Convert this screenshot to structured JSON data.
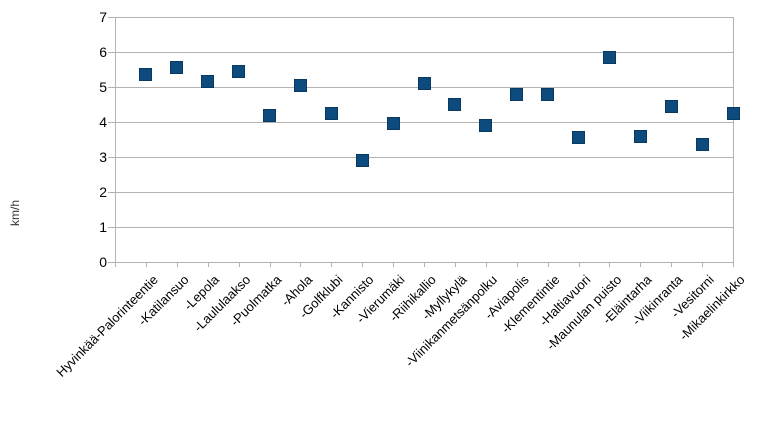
{
  "chart_data": {
    "type": "scatter",
    "marker_shape": "square",
    "title": "",
    "xlabel": "",
    "ylabel": "km/h",
    "ylim": [
      0,
      7
    ],
    "ytick_step": 1,
    "grid": true,
    "legend_position": "none",
    "categories": [
      "Hyvinkää-Palorinteentie",
      "-Katilansuo",
      "-Lepola",
      "-Laululaakso",
      "-Puolmatka",
      "-Ahola",
      "-Golfklubi",
      "-Kannisto",
      "-Vierumäki",
      "-Riihikallio",
      "-Myllykylä",
      "-Viinikanmetsänpolku",
      "-Aviapolis",
      "-Klementintie",
      "-Haltiavuori",
      "-Maunulan puisto",
      "-Eläintarha",
      "-Viikinranta",
      "-Vesitorni",
      "-Mikaelinkirkko"
    ],
    "values": [
      5.35,
      5.55,
      5.15,
      5.45,
      4.2,
      5.05,
      4.25,
      2.9,
      3.95,
      5.1,
      4.5,
      3.9,
      4.8,
      4.8,
      3.55,
      5.85,
      3.6,
      4.45,
      3.35,
      4.25
    ],
    "colors": {
      "marker_fill": "#0d4a7d",
      "marker_border": "#09395f",
      "gridline": "#b3b3b3",
      "axis": "#b3b3b3",
      "text": "#000000",
      "background": "#ffffff"
    }
  }
}
